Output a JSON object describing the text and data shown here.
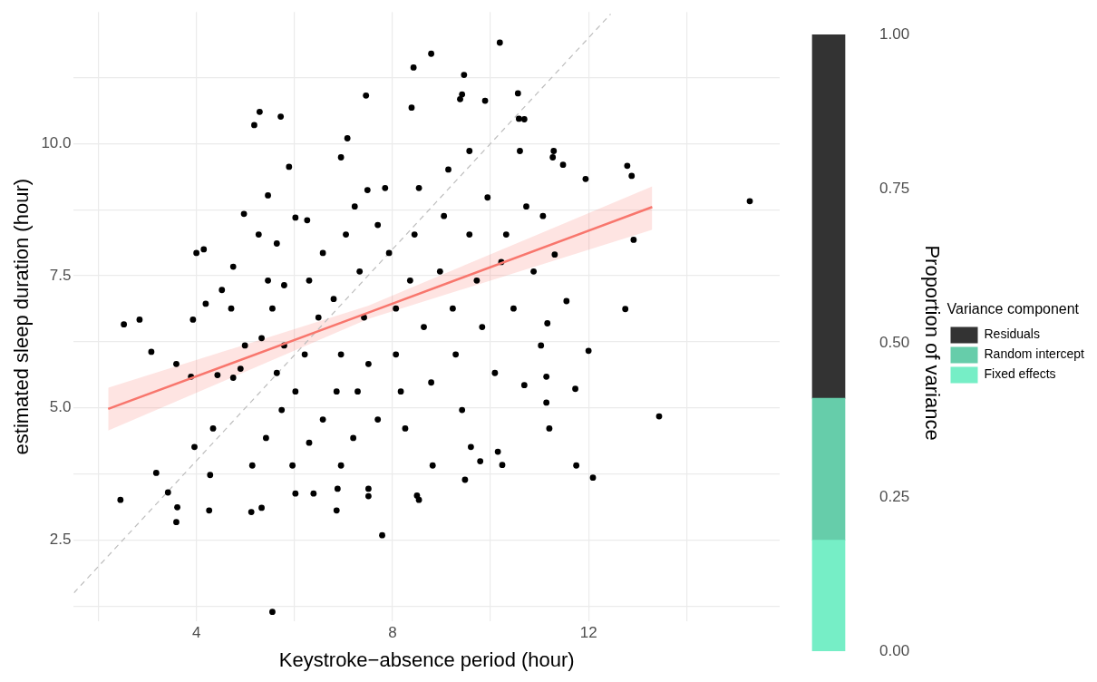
{
  "chart_data": [
    {
      "type": "scatter",
      "xlabel": "Keystroke−absence period (hour)",
      "ylabel": "estimated sleep duration (hour)",
      "xlim": [
        1.5,
        15.9
      ],
      "ylim": [
        0.96,
        12.49
      ],
      "xticks": [
        {
          "value": 2,
          "label": null
        },
        4,
        {
          "value": 6,
          "label": null
        },
        8,
        {
          "value": 10,
          "label": null
        },
        12,
        {
          "value": 14,
          "label": null
        }
      ],
      "yticks": [
        {
          "value": 1.25,
          "label": null
        },
        2.5,
        {
          "value": 3.75,
          "label": null
        },
        {
          "value": 5,
          "label": "5.0"
        },
        {
          "value": 6.25,
          "label": null
        },
        7.5,
        {
          "value": 8.75,
          "label": null
        },
        {
          "value": 10,
          "label": "10.0"
        },
        {
          "value": 11.25,
          "label": null
        }
      ],
      "grid": true,
      "legend": false,
      "series": [
        {
          "type": "scatter",
          "color": "#000000",
          "marker": "circle",
          "x": [
            2.45,
            2.52,
            3.08,
            2.84,
            3.18,
            3.42,
            3.59,
            3.61,
            3.93,
            3.89,
            3.96,
            4.0,
            4.15,
            4.28,
            4.26,
            4.34,
            4.75,
            4.97,
            5.14,
            5.12,
            5.18,
            5.29,
            5.72,
            5.89,
            5.46,
            5.33,
            5.55,
            5.79,
            6.02,
            6.26,
            6.39,
            6.02,
            6.88,
            6.86,
            6.95,
            7.08,
            7.46,
            7.51,
            7.51,
            7.79,
            7.49,
            8.43,
            8.79,
            8.39,
            8.5,
            8.54,
            8.82,
            9.46,
            9.42,
            9.38,
            10.19,
            10.56,
            9.89,
            9.57,
            10.69,
            10.58,
            11.29,
            11.27,
            11.48,
            11.94,
            12.79,
            12.88,
            12.92,
            12.75,
            15.29,
            13.44,
            12.09,
            11.75,
            12.0,
            11.2,
            11.14,
            11.14,
            11.16,
            11.73,
            10.24,
            9.79,
            9.6,
            10.15,
            9.48,
            11.55,
            11.31,
            10.69,
            4.71,
            4.19,
            4.43,
            4.9,
            4.75,
            5.33,
            5.46,
            5.64,
            5.27,
            5.64,
            5.74,
            5.42,
            6.02,
            6.21,
            6.3,
            6.58,
            6.49,
            6.58,
            6.3,
            6.86,
            6.95,
            6.8,
            7.05,
            7.23,
            7.33,
            7.42,
            7.29,
            7.2,
            7.51,
            7.7,
            7.85,
            7.93,
            8.07,
            8.07,
            8.17,
            8.26,
            8.36,
            8.45,
            8.54,
            8.64,
            8.79,
            8.97,
            9.05,
            9.14,
            9.23,
            9.29,
            9.42,
            9.57,
            9.72,
            9.83,
            9.94,
            10.09,
            10.22,
            10.32,
            10.47,
            10.6,
            10.73,
            10.88,
            11.03,
            11.07,
            7.7,
            6.95,
            5.96,
            5.79,
            5.55,
            4.99,
            4.52,
            3.59
          ],
          "values": [
            3.26,
            6.58,
            6.06,
            6.67,
            3.77,
            3.4,
            2.84,
            3.12,
            6.67,
            5.59,
            4.26,
            7.93,
            8.0,
            3.73,
            3.06,
            4.61,
            7.67,
            8.67,
            3.91,
            3.03,
            10.35,
            10.6,
            10.51,
            9.56,
            9.02,
            3.11,
            1.14,
            7.32,
            8.6,
            8.55,
            3.38,
            3.38,
            3.47,
            3.06,
            9.74,
            10.1,
            10.91,
            3.47,
            3.33,
            2.59,
            9.12,
            11.44,
            11.7,
            10.68,
            3.34,
            3.26,
            3.91,
            11.3,
            10.93,
            10.84,
            11.91,
            10.95,
            10.81,
            9.86,
            10.46,
            10.47,
            9.86,
            9.74,
            9.6,
            9.33,
            9.58,
            9.39,
            8.18,
            6.87,
            8.91,
            4.84,
            3.68,
            3.91,
            6.08,
            4.61,
            5.1,
            5.59,
            6.6,
            5.36,
            3.92,
            3.99,
            4.26,
            4.17,
            3.64,
            7.02,
            7.9,
            5.43,
            6.88,
            6.97,
            5.62,
            5.74,
            5.57,
            6.32,
            7.41,
            8.11,
            8.28,
            5.66,
            4.96,
            4.43,
            5.31,
            6.01,
            7.41,
            7.93,
            6.71,
            4.78,
            4.34,
            5.31,
            6.01,
            7.06,
            8.28,
            8.81,
            7.58,
            6.71,
            5.31,
            4.43,
            5.83,
            8.46,
            9.16,
            7.93,
            6.88,
            6.01,
            5.31,
            4.61,
            7.41,
            8.28,
            9.16,
            6.53,
            5.48,
            7.58,
            8.63,
            9.51,
            6.88,
            6.01,
            4.96,
            8.28,
            7.41,
            6.53,
            8.98,
            5.66,
            7.76,
            8.28,
            6.88,
            9.86,
            8.81,
            7.58,
            6.18,
            8.63,
            4.78,
            3.91,
            3.91,
            6.18,
            6.88,
            6.18,
            7.23,
            5.83
          ]
        },
        {
          "type": "line",
          "color": "#f8766d",
          "marker": "none",
          "x": [
            2.2,
            7.5,
            13.3
          ],
          "values": [
            4.98,
            6.8,
            8.8
          ],
          "lower": [
            4.57,
            6.68,
            8.37
          ],
          "upper": [
            5.38,
            6.93,
            9.19
          ]
        },
        {
          "type": "line",
          "color": "#bdbdbd",
          "marker": "none",
          "line_style": "dashed",
          "x": [
            1.5,
            12.45
          ],
          "values": [
            1.5,
            12.45
          ]
        }
      ]
    },
    {
      "type": "bar",
      "stacked": true,
      "ylabel": "Proportion of variance",
      "legend_title": "Variance component",
      "legend": "right",
      "tick_labels": "y",
      "categories": [
        null
      ],
      "ylim": [
        0,
        1
      ],
      "yticks": [
        {
          "value": 0,
          "label": "0.00"
        },
        {
          "value": 0.25,
          "label": "0.25"
        },
        {
          "value": 0.5,
          "label": "0.50"
        },
        {
          "value": 0.75,
          "label": "0.75"
        },
        {
          "value": 1,
          "label": "1.00"
        }
      ],
      "series": [
        {
          "name": "Fixed effects",
          "color": "#76eec6",
          "values": [
            0.18
          ]
        },
        {
          "name": "Random intercept",
          "color": "#66cdaa",
          "values": [
            0.23
          ]
        },
        {
          "name": "Residuals",
          "color": "#333333",
          "values": [
            0.59
          ]
        }
      ]
    }
  ]
}
